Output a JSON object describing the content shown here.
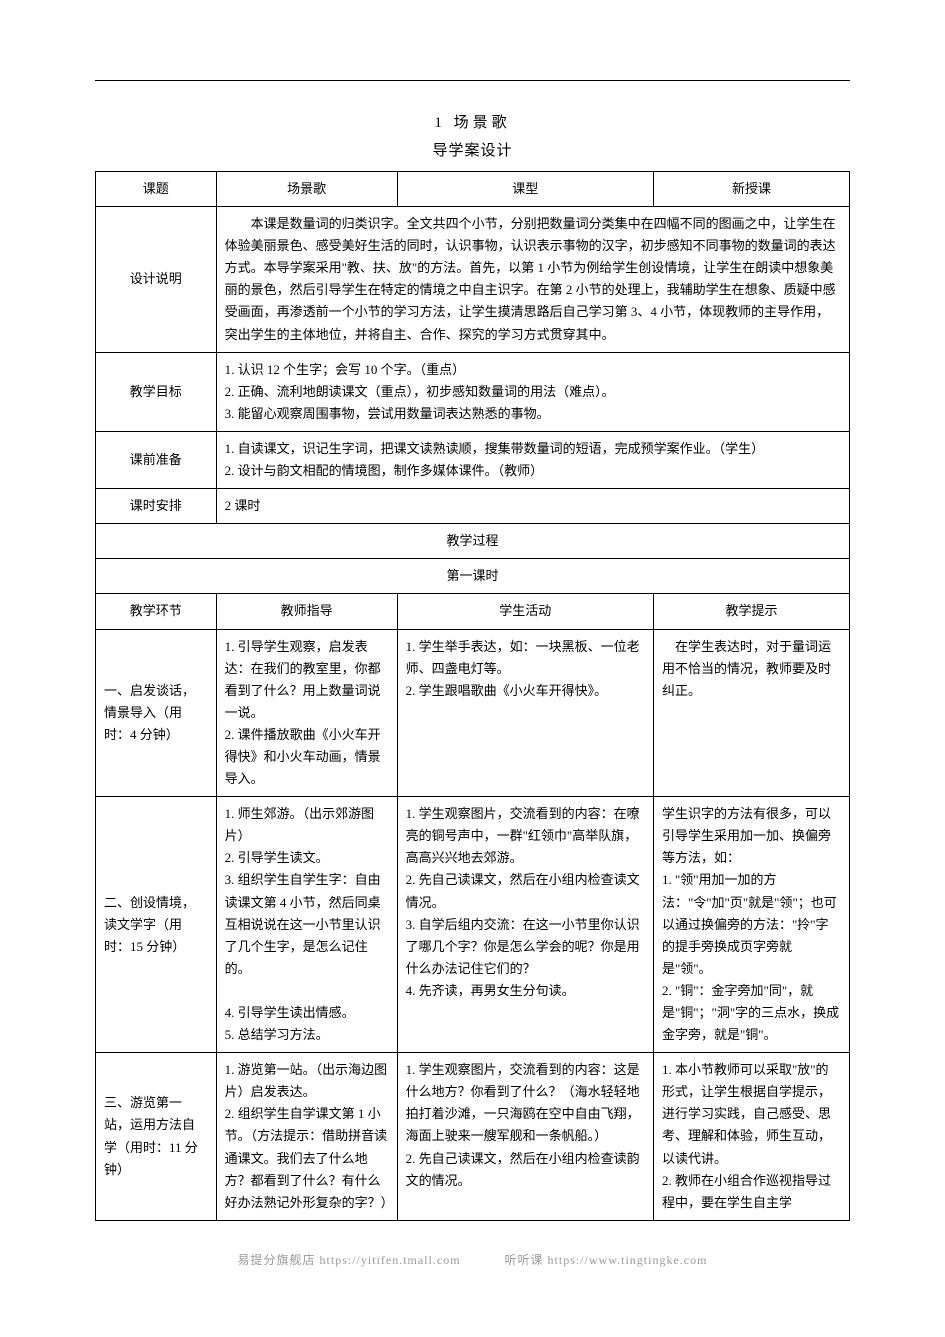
{
  "title_number": "1",
  "title_text": "场景歌",
  "subtitle": "导学案设计",
  "row1": {
    "c1": "课题",
    "c2": "场景歌",
    "c3": "课型",
    "c4": "新授课"
  },
  "design_label": "设计说明",
  "design_text": "　　本课是数量词的归类识字。全文共四个小节，分别把数量词分类集中在四幅不同的图画之中，让学生在体验美丽景色、感受美好生活的同时，认识事物，认识表示事物的汉字，初步感知不同事物的数量词的表达方式。本导学案采用\"教、扶、放\"的方法。首先，以第 1 小节为例给学生创设情境，让学生在朗读中想象美丽的景色，然后引导学生在特定的情境之中自主识字。在第 2 小节的处理上，我辅助学生在想象、质疑中感受画面，再渗透前一个小节的学习方法，让学生摸清思路后自己学习第 3、4 小节，体现教师的主导作用，突出学生的主体地位，并将自主、合作、探究的学习方式贯穿其中。",
  "goals_label": "教学目标",
  "goals_text": "1. 认识 12 个生字；会写 10 个字。（重点）\n2. 正确、流利地朗读课文（重点），初步感知数量词的用法（难点）。\n3. 能留心观察周围事物，尝试用数量词表达熟悉的事物。",
  "prep_label": "课前准备",
  "prep_text": "1. 自读课文，识记生字词，把课文读熟读顺，搜集带数量词的短语，完成预学案作业。（学生）\n2. 设计与韵文相配的情境图，制作多媒体课件。（教师）",
  "period_label": "课时安排",
  "period_text": "2 课时",
  "process_header": "教学过程",
  "lesson1_header": "第一课时",
  "columns": {
    "c1": "教学环节",
    "c2": "教师指导",
    "c3": "学生活动",
    "c4": "教学提示"
  },
  "step1": {
    "label": "一、启发谈话，情景导入（用时：4 分钟）",
    "teacher": "1. 引导学生观察，启发表达：在我们的教室里，你都看到了什么？用上数量词说一说。\n2. 课件播放歌曲《小火车开得快》和小火车动画，情景导入。",
    "student": "1. 学生举手表达，如：一块黑板、一位老师、四盏电灯等。\n2. 学生跟唱歌曲《小火车开得快》。",
    "tip": "　在学生表达时，对于量词运用不恰当的情况，教师要及时纠正。"
  },
  "step2": {
    "label": "二、创设情境，读文学字（用时：15 分钟）",
    "teacher": "1. 师生郊游。（出示郊游图片）\n2. 引导学生读文。\n3. 组织学生自学生字：自由读课文第 4 小节，然后同桌互相说说在这一小节里认识了几个生字，是怎么记住的。\n\n4. 引导学生读出情感。\n5. 总结学习方法。",
    "student": "1. 学生观察图片，交流看到的内容：在嘹亮的铜号声中，一群\"红领巾\"高举队旗，高高兴兴地去郊游。\n2. 先自己读课文，然后在小组内检查读文情况。\n3. 自学后组内交流：在这一小节里你认识了哪几个字？你是怎么学会的呢？你是用什么办法记住它们的？\n4. 先齐读，再男女生分句读。",
    "tip": "学生识字的方法有很多，可以引导学生采用加一加、换偏旁等方法，如：\n1. \"领\"用加一加的方法：\"令\"加\"页\"就是\"领\"；也可以通过换偏旁的方法：\"拎\"字的提手旁换成页字旁就是\"领\"。\n2. \"铜\"：金字旁加\"同\"，就是\"铜\"；\"洞\"字的三点水，换成金字旁，就是\"铜\"。"
  },
  "step3": {
    "label": "三、游览第一站，运用方法自学（用时：11 分钟）",
    "teacher": "1. 游览第一站。（出示海边图片）启发表达。\n2. 组织学生自学课文第 1 小节。（方法提示：借助拼音读通课文。我们去了什么地方？都看到了什么？有什么好办法熟记外形复杂的字？）",
    "student": "1. 学生观察图片，交流看到的内容：这是什么地方？你看到了什么？（海水轻轻地拍打着沙滩，一只海鸥在空中自由飞翔，海面上驶来一艘军舰和一条帆船。）\n2. 先自己读课文，然后在小组内检查读韵文的情况。",
    "tip": "1. 本小节教师可以采取\"放\"的形式，让学生根据自学提示，进行学习实践，自己感受、思考、理解和体验，师生互动，以读代讲。\n2. 教师在小组合作巡视指导过程中，要在学生自主学"
  },
  "footer": {
    "left": "易提分旗舰店  https://yitifen.tmall.com",
    "right": "听听课  https://www.tingtingke.com"
  }
}
